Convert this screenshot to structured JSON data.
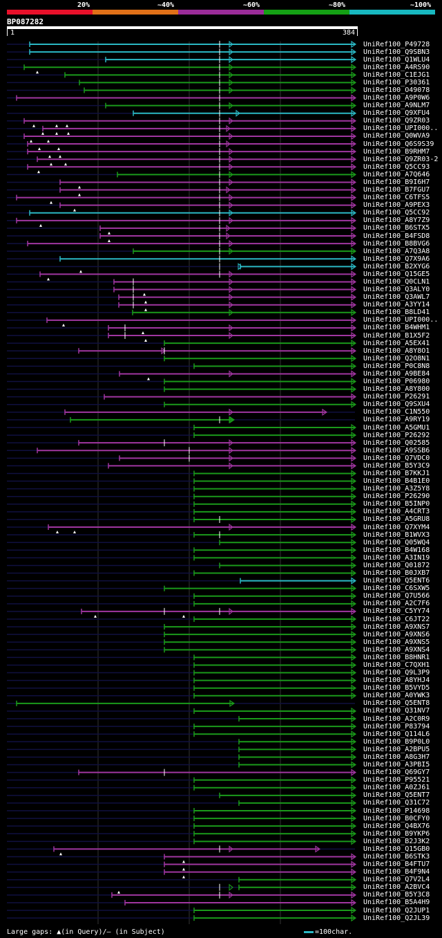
{
  "legend": {
    "labels": [
      "20%",
      "~40%",
      "~60%",
      "~80%",
      "~100%"
    ],
    "colors": [
      "#e8102a",
      "#e07018",
      "#9a2c98",
      "#14a014",
      "#18b8c0"
    ]
  },
  "query": {
    "id": "BP087282",
    "start": "1",
    "end": "384"
  },
  "colors": {
    "background": "#000000",
    "backbone": "#101040",
    "magenta": "#a036a0",
    "green": "#1a9a1a",
    "cyan": "#2bb8c4",
    "gridline": "#333333"
  },
  "hits": [
    {
      "label": "UniRef100_P49728",
      "color": "cyan"
    },
    {
      "label": "UniRef100_Q9SBN3",
      "color": "cyan"
    },
    {
      "label": "UniRef100_Q1WLU4",
      "color": "cyan"
    },
    {
      "label": "UniRef100_A4RS90",
      "color": "green"
    },
    {
      "label": "UniRef100_C1EJG1",
      "color": "green"
    },
    {
      "label": "UniRef100_P30361",
      "color": "green"
    },
    {
      "label": "UniRef100_O49078",
      "color": "green"
    },
    {
      "label": "UniRef100_A9P0W6",
      "color": "magenta"
    },
    {
      "label": "UniRef100_A9NLM7",
      "color": "green"
    },
    {
      "label": "UniRef100_Q9XFU4",
      "color": "cyan"
    },
    {
      "label": "UniRef100_Q9ZR03",
      "color": "magenta"
    },
    {
      "label": "UniRef100_UPI000..",
      "color": "magenta"
    },
    {
      "label": "UniRef100_Q0WVA9",
      "color": "magenta"
    },
    {
      "label": "UniRef100_Q6S9S39",
      "color": "magenta"
    },
    {
      "label": "UniRef100_B9RHM7",
      "color": "magenta"
    },
    {
      "label": "UniRef100_Q9ZR03-2",
      "color": "magenta"
    },
    {
      "label": "UniRef100_Q5CC93",
      "color": "magenta"
    },
    {
      "label": "UniRef100_A7Q646",
      "color": "green"
    },
    {
      "label": "UniRef100_B9I6H7",
      "color": "magenta"
    },
    {
      "label": "UniRef100_B7FGU7",
      "color": "magenta"
    },
    {
      "label": "UniRef100_C6TFS5",
      "color": "magenta"
    },
    {
      "label": "UniRef100_A9PEX3",
      "color": "magenta"
    },
    {
      "label": "UniRef100_Q5CC92",
      "color": "cyan"
    },
    {
      "label": "UniRef100_A8Y7Z9",
      "color": "magenta"
    },
    {
      "label": "UniRef100_B6STX5",
      "color": "magenta"
    },
    {
      "label": "UniRef100_B4FSD8",
      "color": "magenta"
    },
    {
      "label": "UniRef100_B8BVG6",
      "color": "magenta"
    },
    {
      "label": "UniRef100_A7Q3A8",
      "color": "green"
    },
    {
      "label": "UniRef100_Q7X9A6",
      "color": "cyan"
    },
    {
      "label": "UniRef100_B2XYG6",
      "color": "cyan"
    },
    {
      "label": "UniRef100_Q15GE5",
      "color": "magenta"
    },
    {
      "label": "UniRef100_Q0CLN1",
      "color": "magenta"
    },
    {
      "label": "UniRef100_Q3ALY0",
      "color": "magenta"
    },
    {
      "label": "UniRef100_Q3AWL7",
      "color": "magenta"
    },
    {
      "label": "UniRef100_A3YY14",
      "color": "magenta"
    },
    {
      "label": "UniRef100_B8LD41",
      "color": "green"
    },
    {
      "label": "UniRef100_UPI000..",
      "color": "magenta"
    },
    {
      "label": "UniRef100_B4WHM1",
      "color": "magenta"
    },
    {
      "label": "UniRef100_B1X5F2",
      "color": "magenta"
    },
    {
      "label": "UniRef100_A5EX41",
      "color": "green"
    },
    {
      "label": "UniRef100_A8Y8O1",
      "color": "magenta"
    },
    {
      "label": "UniRef100_Q2O8N1",
      "color": "green"
    },
    {
      "label": "UniRef100_P0C8N8",
      "color": "green"
    },
    {
      "label": "UniRef100_A9BE84",
      "color": "magenta"
    },
    {
      "label": "UniRef100_P06980",
      "color": "green"
    },
    {
      "label": "UniRef100_A8Y800",
      "color": "green"
    },
    {
      "label": "UniRef100_P26291",
      "color": "magenta"
    },
    {
      "label": "UniRef100_Q9SXU4",
      "color": "green"
    },
    {
      "label": "UniRef100_C1N550",
      "color": "magenta"
    },
    {
      "label": "UniRef100_A9RY19",
      "color": "green"
    },
    {
      "label": "UniRef100_A5GMU1",
      "color": "green"
    },
    {
      "label": "UniRef100_P26292",
      "color": "green"
    },
    {
      "label": "UniRef100_Q02585",
      "color": "magenta"
    },
    {
      "label": "UniRef100_A9SSB6",
      "color": "magenta"
    },
    {
      "label": "UniRef100_Q7VDC0",
      "color": "magenta"
    },
    {
      "label": "UniRef100_B5Y3C9",
      "color": "magenta"
    },
    {
      "label": "UniRef100_B7KKJ1",
      "color": "green"
    },
    {
      "label": "UniRef100_B4B1E0",
      "color": "green"
    },
    {
      "label": "UniRef100_A3Z5Y8",
      "color": "green"
    },
    {
      "label": "UniRef100_P26290",
      "color": "green"
    },
    {
      "label": "UniRef100_B5INP0",
      "color": "green"
    },
    {
      "label": "UniRef100_A4CRT3",
      "color": "green"
    },
    {
      "label": "UniRef100_A5GRU8",
      "color": "green"
    },
    {
      "label": "UniRef100_Q7XYM4",
      "color": "magenta"
    },
    {
      "label": "UniRef100_B1WVX3",
      "color": "green"
    },
    {
      "label": "UniRef100_Q05WQ4",
      "color": "green"
    },
    {
      "label": "UniRef100_B4W168",
      "color": "green"
    },
    {
      "label": "UniRef100_A3IN19",
      "color": "green"
    },
    {
      "label": "UniRef100_Q01872",
      "color": "green"
    },
    {
      "label": "UniRef100_B0JXB7",
      "color": "green"
    },
    {
      "label": "UniRef100_Q5ENT6",
      "color": "cyan"
    },
    {
      "label": "UniRef100_C6SXW5",
      "color": "green"
    },
    {
      "label": "UniRef100_Q7U566",
      "color": "green"
    },
    {
      "label": "UniRef100_A2C7F6",
      "color": "green"
    },
    {
      "label": "UniRef100_C5YY74",
      "color": "magenta"
    },
    {
      "label": "UniRef100_C6JT22",
      "color": "green"
    },
    {
      "label": "UniRef100_A9XNS7",
      "color": "green"
    },
    {
      "label": "UniRef100_A9XNS6",
      "color": "green"
    },
    {
      "label": "UniRef100_A9XNS5",
      "color": "green"
    },
    {
      "label": "UniRef100_A9XNS4",
      "color": "green"
    },
    {
      "label": "UniRef100_B8HNR1",
      "color": "green"
    },
    {
      "label": "UniRef100_C7QXH1",
      "color": "green"
    },
    {
      "label": "UniRef100_Q9L3P9",
      "color": "green"
    },
    {
      "label": "UniRef100_A8YHJ4",
      "color": "green"
    },
    {
      "label": "UniRef100_B5VYD5",
      "color": "green"
    },
    {
      "label": "UniRef100_A0YWK3",
      "color": "green"
    },
    {
      "label": "UniRef100_Q5ENT8",
      "color": "green"
    },
    {
      "label": "UniRef100_Q31NV7",
      "color": "green"
    },
    {
      "label": "UniRef100_A2C0R9",
      "color": "green"
    },
    {
      "label": "UniRef100_P83794",
      "color": "green"
    },
    {
      "label": "UniRef100_Q114L6",
      "color": "green"
    },
    {
      "label": "UniRef100_B9P0L0",
      "color": "green"
    },
    {
      "label": "UniRef100_A2BPU5",
      "color": "green"
    },
    {
      "label": "UniRef100_A8G3H7",
      "color": "green"
    },
    {
      "label": "UniRef100_A3PBI5",
      "color": "green"
    },
    {
      "label": "UniRef100_Q69GY7",
      "color": "magenta"
    },
    {
      "label": "UniRef100_P95521",
      "color": "green"
    },
    {
      "label": "UniRef100_A0ZJ61",
      "color": "green"
    },
    {
      "label": "UniRef100_Q5ENT7",
      "color": "green"
    },
    {
      "label": "UniRef100_Q31C72",
      "color": "green"
    },
    {
      "label": "UniRef100_P14698",
      "color": "green"
    },
    {
      "label": "UniRef100_B0CFY0",
      "color": "green"
    },
    {
      "label": "UniRef100_Q4BX76",
      "color": "green"
    },
    {
      "label": "UniRef100_B9YKP6",
      "color": "green"
    },
    {
      "label": "UniRef100_B2J3K2",
      "color": "green"
    },
    {
      "label": "UniRef100_Q15GB0",
      "color": "magenta"
    },
    {
      "label": "UniRef100_B6STK3",
      "color": "magenta"
    },
    {
      "label": "UniRef100_B4FTU7",
      "color": "magenta"
    },
    {
      "label": "UniRef100_B4F9N4",
      "color": "magenta"
    },
    {
      "label": "UniRef100_Q7V2L4",
      "color": "green"
    },
    {
      "label": "UniRef100_A2BVC4",
      "color": "green"
    },
    {
      "label": "UniRef100_B5Y3C8",
      "color": "magenta"
    },
    {
      "label": "UniRef100_B5A4H9",
      "color": "magenta"
    },
    {
      "label": "UniRef100_Q2JUP1",
      "color": "green"
    },
    {
      "label": "UniRef100_Q2JL39",
      "color": "green"
    }
  ],
  "footer": {
    "text": "Large gaps: ▲(in Query)/— (in Subject)"
  },
  "scale": {
    "text": "=100char."
  }
}
